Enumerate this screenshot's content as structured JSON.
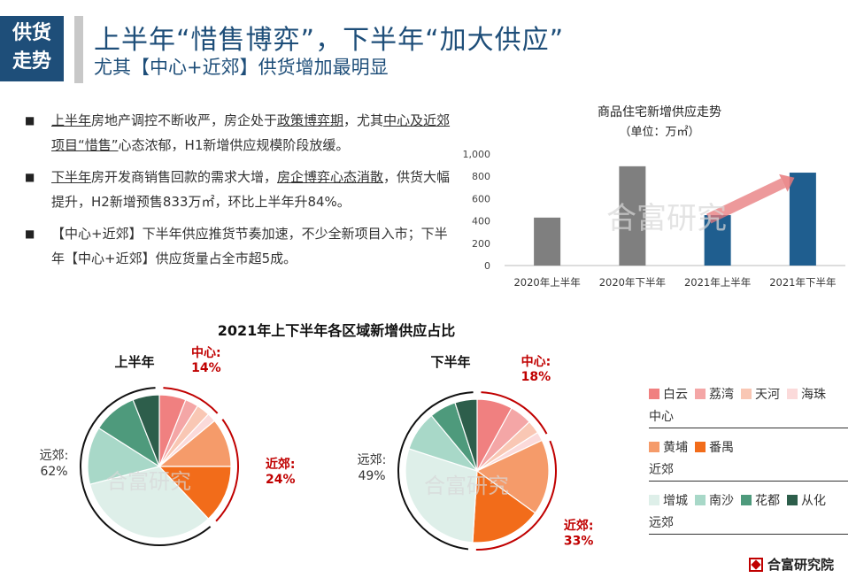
{
  "header": {
    "tag_line1": "供货",
    "tag_line2": "走势",
    "title": "上半年“惜售博弈”，下半年“加大供应”",
    "subtitle": "尤其【中心+近郊】供货增加最明显"
  },
  "bullets": [
    {
      "u1": "上半年",
      "t1": "房地产调控不断收严，房企处于",
      "u2": "政策博弈期",
      "t2": "，尤其",
      "u3": "中心及近郊项目“惜售”",
      "t3": "心态浓郁，H1新增供应规模阶段放缓。"
    },
    {
      "u1": "下半年",
      "t1": "房开发商销售回款的需求大增，",
      "u2": "房企博弈心态消散",
      "t2": "，供货大幅提升，H2新增预售833万㎡，环比上半年升84%。"
    },
    {
      "t1": "【中心+近郊】下半年供应推货节奏加速，不少全新项目入市；下半年【中心+近郊】供应货量占全市超5成。"
    }
  ],
  "watermark": "合富研究",
  "brand": "合富研究院",
  "colors": {
    "accent": "#1e4e79",
    "gray_bar": "#7f7f7f",
    "blue_bar": "#1f5e8f",
    "arrow": "#e8787a",
    "highlight": "#c00000",
    "baiyun": "#f08080",
    "liwan": "#f4a6a6",
    "tianhe": "#f9c7b4",
    "haizhu": "#fbdada",
    "huangpu": "#f59b6a",
    "panyu": "#f26c1a",
    "zengcheng": "#deefe9",
    "nansha": "#a8d8c8",
    "huadu": "#4e9a7c",
    "conghua": "#2d5e4b"
  },
  "chart_data": [
    {
      "type": "bar",
      "title": "商品住宅新增供应走势",
      "unit": "（单位：万㎡）",
      "categories": [
        "2020年上半年",
        "2020年下半年",
        "2021年上半年",
        "2021年下半年"
      ],
      "values": [
        430,
        890,
        452,
        833
      ],
      "ylim": [
        0,
        1000
      ],
      "yticks": [
        "0",
        "200",
        "400",
        "600",
        "800",
        "1,000"
      ],
      "grid": false
    },
    {
      "type": "pie",
      "section_title": "2021年上下半年各区域新增供应占比",
      "title": "上半年",
      "categories": [
        "白云",
        "荔湾",
        "天河",
        "海珠",
        "黄埔",
        "番禺",
        "增城",
        "南沙",
        "花都",
        "从化"
      ],
      "values": [
        6,
        3,
        3,
        2,
        11,
        13,
        33,
        13,
        10,
        6
      ],
      "group_labels": {
        "center_name": "中心:",
        "center_pct": "14%",
        "near_name": "近郊:",
        "near_pct": "24%",
        "far_name": "远郊:",
        "far_pct": "62%"
      }
    },
    {
      "type": "pie",
      "title": "下半年",
      "categories": [
        "白云",
        "荔湾",
        "天河",
        "海珠",
        "黄埔",
        "番禺",
        "增城",
        "南沙",
        "花都",
        "从化"
      ],
      "values": [
        8,
        5,
        3,
        2,
        17,
        16,
        29,
        9,
        6,
        5
      ],
      "group_labels": {
        "center_name": "中心:",
        "center_pct": "18%",
        "near_name": "近郊:",
        "near_pct": "33%",
        "far_name": "远郊:",
        "far_pct": "49%"
      }
    }
  ],
  "legend": {
    "rows": [
      {
        "items": [
          "白云",
          "荔湾",
          "天河",
          "海珠"
        ],
        "keys": [
          "baiyun",
          "liwan",
          "tianhe",
          "haizhu"
        ],
        "group": "中心"
      },
      {
        "items": [
          "黄埔",
          "番禺"
        ],
        "keys": [
          "huangpu",
          "panyu"
        ],
        "group": "近郊"
      },
      {
        "items": [
          "增城",
          "南沙",
          "花都",
          "从化"
        ],
        "keys": [
          "zengcheng",
          "nansha",
          "huadu",
          "conghua"
        ],
        "group": "远郊"
      }
    ]
  }
}
